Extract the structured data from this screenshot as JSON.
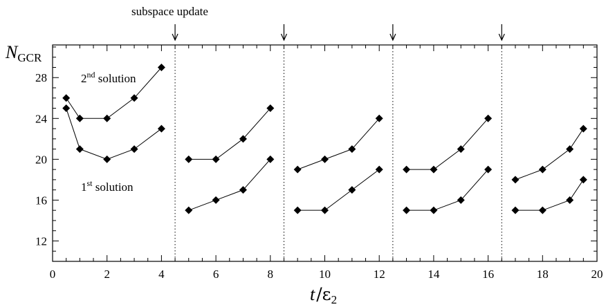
{
  "chart_data": {
    "type": "line",
    "xlim": [
      0,
      20
    ],
    "ylim": [
      10,
      31.2
    ],
    "xticks": [
      0,
      2,
      4,
      6,
      8,
      10,
      12,
      14,
      16,
      18,
      20
    ],
    "yticks": [
      12,
      16,
      20,
      24,
      28
    ],
    "xlabel": {
      "var": "t",
      "slash": "/",
      "eps": "ε",
      "sub": "2"
    },
    "ylabel": {
      "var": "N",
      "sub": "GCR"
    },
    "annotation": {
      "update_label": "subspace update",
      "update_positions": [
        4.5,
        8.5,
        12.5,
        16.5
      ]
    },
    "series": [
      {
        "label": {
          "num": "2",
          "sup": "nd",
          "text": " solution"
        },
        "segments": [
          {
            "x": [
              0.5,
              1,
              2,
              3,
              4
            ],
            "y": [
              26,
              24,
              24,
              26,
              29
            ]
          },
          {
            "x": [
              5,
              6,
              7,
              8
            ],
            "y": [
              20,
              20,
              22,
              25
            ]
          },
          {
            "x": [
              9,
              10,
              11,
              12
            ],
            "y": [
              19,
              20,
              21,
              24
            ]
          },
          {
            "x": [
              13,
              14,
              15,
              16
            ],
            "y": [
              19,
              19,
              21,
              24
            ]
          },
          {
            "x": [
              17,
              18,
              19,
              19.5
            ],
            "y": [
              18,
              19,
              21,
              23
            ]
          }
        ]
      },
      {
        "label": {
          "num": "1",
          "sup": "st",
          "text": " solution"
        },
        "segments": [
          {
            "x": [
              0.5,
              1,
              2,
              3,
              4
            ],
            "y": [
              25,
              21,
              20,
              21,
              23
            ]
          },
          {
            "x": [
              5,
              6,
              7,
              8
            ],
            "y": [
              15,
              16,
              17,
              20
            ]
          },
          {
            "x": [
              9,
              10,
              11,
              12
            ],
            "y": [
              15,
              15,
              17,
              19
            ]
          },
          {
            "x": [
              13,
              14,
              15,
              16
            ],
            "y": [
              15,
              15,
              16,
              19
            ]
          },
          {
            "x": [
              17,
              18,
              19,
              19.5
            ],
            "y": [
              15,
              15,
              16,
              18
            ]
          }
        ]
      }
    ]
  }
}
